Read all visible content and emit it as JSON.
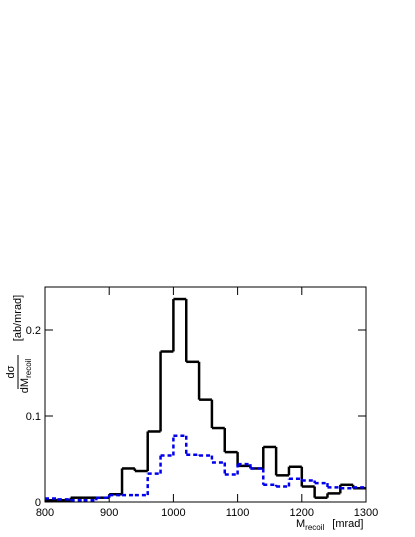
{
  "chart_data": {
    "type": "histogram",
    "bins": [
      800,
      820,
      840,
      860,
      880,
      900,
      920,
      940,
      960,
      980,
      1000,
      1020,
      1040,
      1060,
      1080,
      1100,
      1120,
      1140,
      1160,
      1180,
      1200,
      1220,
      1240,
      1260,
      1280,
      1300
    ],
    "series": [
      {
        "color": "#000000",
        "dash": "solid",
        "values": [
          0.002,
          0.002,
          0.005,
          0.005,
          0.005,
          0.009,
          0.039,
          0.036,
          0.082,
          0.175,
          0.236,
          0.163,
          0.119,
          0.086,
          0.058,
          0.042,
          0.039,
          0.064,
          0.031,
          0.041,
          0.018,
          0.005,
          0.01,
          0.02,
          0.016
        ]
      },
      {
        "color": "#0000ee",
        "dash": "dashed",
        "values": [
          0.004,
          0.003,
          0.002,
          0.002,
          0.005,
          0.008,
          0.008,
          0.008,
          0.033,
          0.054,
          0.077,
          0.055,
          0.054,
          0.046,
          0.032,
          0.044,
          0.039,
          0.02,
          0.018,
          0.027,
          0.025,
          0.022,
          0.017,
          0.016,
          0.017
        ]
      }
    ],
    "xlim": [
      800,
      1300
    ],
    "xticks": [
      800,
      900,
      1000,
      1100,
      1200,
      1300
    ],
    "ylim": [
      0,
      0.25
    ],
    "yticks": [
      0,
      0.1,
      0.2
    ],
    "x_label": {
      "main": "M",
      "subscript": "recoil",
      "unit": "[mrad]"
    },
    "y_label": {
      "numerator": "dσ",
      "denominator": "dM",
      "subscript": "recoil",
      "unit": "[ab/mrad]"
    }
  }
}
